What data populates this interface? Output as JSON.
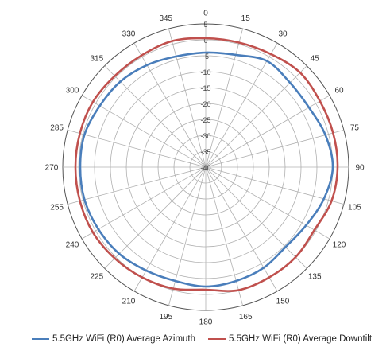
{
  "chart_data": {
    "type": "polar-line",
    "angle_labels": [
      "0",
      "15",
      "30",
      "45",
      "60",
      "75",
      "90",
      "105",
      "120",
      "135",
      "150",
      "165",
      "180",
      "195",
      "210",
      "225",
      "240",
      "255",
      "270",
      "285",
      "300",
      "315",
      "330",
      "345"
    ],
    "radial_ticks": [
      -40,
      -35,
      -30,
      -25,
      -20,
      -15,
      -10,
      -5,
      0,
      5
    ],
    "radial_tick_labels": [
      "-40",
      "-35",
      "-30",
      "-25",
      "-20",
      "-15",
      "-10",
      "-5",
      "0",
      "5"
    ],
    "rlim": [
      -40,
      5
    ],
    "grid": true,
    "legend_position": "bottom",
    "series": [
      {
        "name": "5.5GHz WiFi (R0) Average Azimuth",
        "color": "#4a7ebb",
        "angles": [
          0,
          15,
          30,
          45,
          60,
          75,
          90,
          105,
          120,
          135,
          150,
          165,
          180,
          195,
          210,
          225,
          240,
          255,
          270,
          285,
          300,
          315,
          330,
          345
        ],
        "values": [
          -4,
          -3.5,
          -1.5,
          -2.5,
          -2.5,
          -1,
          0,
          -1.5,
          -3.5,
          -4.5,
          -3.5,
          -3,
          -2.5,
          -3,
          -2.5,
          -1.5,
          -1,
          -0.5,
          -0.5,
          -0.5,
          -1.5,
          -2,
          -3,
          -4
        ]
      },
      {
        "name": "5.5GHz WiFi (R0) Average Downtilt",
        "color": "#c0504d",
        "angles": [
          0,
          15,
          30,
          45,
          60,
          75,
          90,
          105,
          120,
          135,
          150,
          165,
          180,
          195,
          210,
          225,
          240,
          255,
          270,
          285,
          300,
          315,
          330,
          345
        ],
        "values": [
          0.5,
          0.5,
          1,
          2,
          1.5,
          1.5,
          1.5,
          1,
          -0.5,
          0,
          0,
          0,
          -1.5,
          -0.5,
          0,
          0.5,
          1,
          1,
          1,
          1,
          1,
          0.5,
          0.5,
          1
        ]
      }
    ]
  }
}
